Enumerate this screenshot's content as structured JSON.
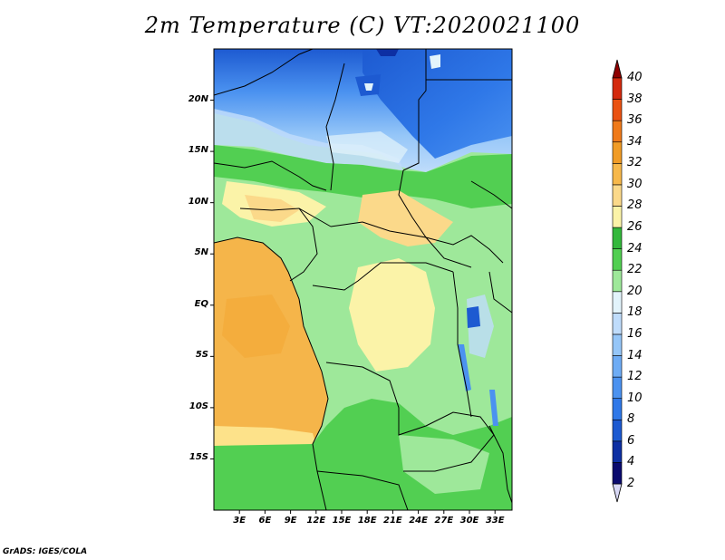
{
  "title": "2m Temperature (C) VT:2020021100",
  "credit": "GrADS: IGES/COLA",
  "lat_ticks": [
    {
      "label": "20N",
      "lat": 20
    },
    {
      "label": "15N",
      "lat": 15
    },
    {
      "label": "10N",
      "lat": 10
    },
    {
      "label": "5N",
      "lat": 5
    },
    {
      "label": "EQ",
      "lat": 0
    },
    {
      "label": "5S",
      "lat": -5
    },
    {
      "label": "10S",
      "lat": -10
    },
    {
      "label": "15S",
      "lat": -15
    }
  ],
  "lon_ticks": [
    {
      "label": "3E",
      "lon": 3
    },
    {
      "label": "6E",
      "lon": 6
    },
    {
      "label": "9E",
      "lon": 9
    },
    {
      "label": "12E",
      "lon": 12
    },
    {
      "label": "15E",
      "lon": 15
    },
    {
      "label": "18E",
      "lon": 18
    },
    {
      "label": "21E",
      "lon": 21
    },
    {
      "label": "24E",
      "lon": 24
    },
    {
      "label": "27E",
      "lon": 27
    },
    {
      "label": "30E",
      "lon": 30
    },
    {
      "label": "33E",
      "lon": 33
    }
  ],
  "map_extent": {
    "lon_min": 0,
    "lon_max": 35,
    "lat_min": -20,
    "lat_max": 25
  },
  "colorbar": {
    "levels": [
      "2",
      "4",
      "6",
      "8",
      "10",
      "12",
      "14",
      "16",
      "18",
      "20",
      "22",
      "24",
      "26",
      "28",
      "30",
      "32",
      "34",
      "36",
      "38",
      "40"
    ],
    "colors": [
      "#0a0a6e",
      "#0d2fa3",
      "#1d5ad1",
      "#2f78e8",
      "#4b92f0",
      "#6eacf5",
      "#95c6f8",
      "#bfdcfb",
      "#e2f3fb",
      "#9ee89a",
      "#52cf52",
      "#33b83c",
      "#fbf3a8",
      "#fbd98a",
      "#f7b84a",
      "#f19c26",
      "#ef7a1a",
      "#ea5212",
      "#d42a0e",
      "#b8120a"
    ],
    "min_color": "#d8d8f5",
    "max_color": "#8e0000"
  },
  "colors": {
    "ocean": "#f5b54a",
    "ocean_dark": "#f3a835",
    "sea_light": "#fde28a",
    "land_green": "#52cf52",
    "land_light_green": "#9ee89a",
    "land_yellow": "#fbf3a8",
    "sahara_blue": "#2f78e8",
    "sahara_dark": "#1d5ad1",
    "sahara_light": "#95c6f8",
    "sahara_pale": "#bfdcfb",
    "lake": "#0d2fa3",
    "border": "#000000"
  }
}
